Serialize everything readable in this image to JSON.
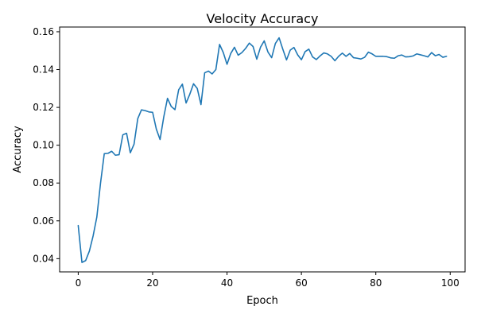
{
  "chart_data": {
    "type": "line",
    "title": "Velocity Accuracy",
    "xlabel": "Epoch",
    "ylabel": "Accuracy",
    "xlim": [
      -5,
      104
    ],
    "ylim": [
      0.033,
      0.1625
    ],
    "grid": false,
    "color": "#1f77b4",
    "x_ticks": [
      0,
      20,
      40,
      60,
      80,
      100
    ],
    "x_tick_labels": [
      "0",
      "20",
      "40",
      "60",
      "80",
      "100"
    ],
    "y_ticks": [
      0.04,
      0.06,
      0.08,
      0.1,
      0.12,
      0.14,
      0.16
    ],
    "y_tick_labels": [
      "0.04",
      "0.06",
      "0.08",
      "0.10",
      "0.12",
      "0.14",
      "0.16"
    ],
    "series": [
      {
        "x": [
          0,
          1,
          2,
          3,
          4,
          5,
          6,
          7,
          8,
          9,
          10,
          11,
          12,
          13,
          14,
          15,
          16,
          17,
          18,
          19,
          20,
          21,
          22,
          23,
          24,
          25,
          26,
          27,
          28,
          29,
          30,
          31,
          32,
          33,
          34,
          35,
          36,
          37,
          38,
          39,
          40,
          41,
          42,
          43,
          44,
          45,
          46,
          47,
          48,
          49,
          50,
          51,
          52,
          53,
          54,
          55,
          56,
          57,
          58,
          59,
          60,
          61,
          62,
          63,
          64,
          65,
          66,
          67,
          68,
          69,
          70,
          71,
          72,
          73,
          74,
          75,
          76,
          77,
          78,
          79,
          80,
          81,
          82,
          83,
          84,
          85,
          86,
          87,
          88,
          89,
          90,
          91,
          92,
          93,
          94,
          95,
          96,
          97,
          98,
          99
        ],
        "y": [
          0.0575,
          0.038,
          0.039,
          0.044,
          0.052,
          0.062,
          0.08,
          0.0955,
          0.0957,
          0.0968,
          0.0947,
          0.095,
          0.1055,
          0.1063,
          0.096,
          0.1005,
          0.114,
          0.1187,
          0.1183,
          0.1176,
          0.1174,
          0.1085,
          0.103,
          0.115,
          0.1248,
          0.1205,
          0.1188,
          0.1293,
          0.1323,
          0.1223,
          0.127,
          0.1325,
          0.13,
          0.1215,
          0.1383,
          0.1392,
          0.1377,
          0.14,
          0.1533,
          0.149,
          0.1428,
          0.1485,
          0.1518,
          0.1476,
          0.149,
          0.1512,
          0.154,
          0.1522,
          0.1455,
          0.1518,
          0.1552,
          0.1493,
          0.1463,
          0.1538,
          0.1568,
          0.1508,
          0.1451,
          0.1503,
          0.1517,
          0.1478,
          0.1452,
          0.1495,
          0.1508,
          0.1467,
          0.1453,
          0.1472,
          0.1488,
          0.1483,
          0.147,
          0.1447,
          0.147,
          0.1487,
          0.147,
          0.1485,
          0.1463,
          0.146,
          0.1456,
          0.1465,
          0.1492,
          0.1483,
          0.147,
          0.147,
          0.147,
          0.1468,
          0.1462,
          0.146,
          0.1473,
          0.1477,
          0.1467,
          0.1468,
          0.1472,
          0.1483,
          0.1478,
          0.1473,
          0.1467,
          0.149,
          0.1473,
          0.148,
          0.1465,
          0.147
        ]
      }
    ]
  }
}
